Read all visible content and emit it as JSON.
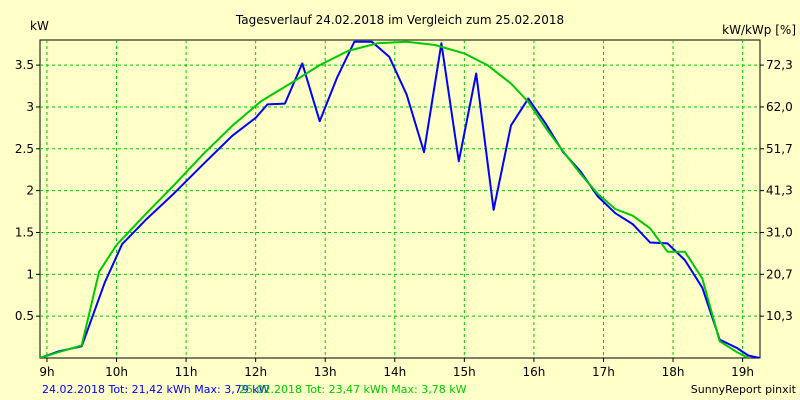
{
  "chart_data": {
    "type": "line",
    "title": "Tagesverlauf 24.02.2018 im Vergleich zum 25.02.2018",
    "ylabel_left": "kW",
    "ylabel_right": "kW/kWp [%]",
    "xlim": [
      8.9,
      19.25
    ],
    "ylim": [
      0,
      3.8
    ],
    "grid": true,
    "x_ticks": [
      {
        "x": 9,
        "label": "9h"
      },
      {
        "x": 10,
        "label": "10h"
      },
      {
        "x": 11,
        "label": "11h"
      },
      {
        "x": 12,
        "label": "12h"
      },
      {
        "x": 13,
        "label": "13h"
      },
      {
        "x": 14,
        "label": "14h"
      },
      {
        "x": 15,
        "label": "15h"
      },
      {
        "x": 16,
        "label": "16h"
      },
      {
        "x": 17,
        "label": "17h"
      },
      {
        "x": 18,
        "label": "18h"
      },
      {
        "x": 19,
        "label": "19h"
      }
    ],
    "y_ticks_left": [
      {
        "y": 0.5,
        "label": "0.5"
      },
      {
        "y": 1,
        "label": "1"
      },
      {
        "y": 1.5,
        "label": "1.5"
      },
      {
        "y": 2,
        "label": "2"
      },
      {
        "y": 2.5,
        "label": "2.5"
      },
      {
        "y": 3,
        "label": "3"
      },
      {
        "y": 3.5,
        "label": "3.5"
      }
    ],
    "y_ticks_right": [
      {
        "y": 0.5,
        "label": "10,3"
      },
      {
        "y": 1,
        "label": "20,7"
      },
      {
        "y": 1.5,
        "label": "31,0"
      },
      {
        "y": 2,
        "label": "41,3"
      },
      {
        "y": 2.5,
        "label": "51,7"
      },
      {
        "y": 3,
        "label": "62,0"
      },
      {
        "y": 3.5,
        "label": "72,3"
      }
    ],
    "series": [
      {
        "name": "24.02.2018",
        "color": "#0000ff",
        "points": [
          [
            8.9,
            0.0
          ],
          [
            9.17,
            0.08
          ],
          [
            9.5,
            0.14
          ],
          [
            9.83,
            0.9
          ],
          [
            10.08,
            1.36
          ],
          [
            10.42,
            1.65
          ],
          [
            10.83,
            1.97
          ],
          [
            11.25,
            2.32
          ],
          [
            11.67,
            2.66
          ],
          [
            12.0,
            2.87
          ],
          [
            12.17,
            3.03
          ],
          [
            12.42,
            3.04
          ],
          [
            12.67,
            3.52
          ],
          [
            12.92,
            2.83
          ],
          [
            13.17,
            3.35
          ],
          [
            13.42,
            3.78
          ],
          [
            13.67,
            3.78
          ],
          [
            13.92,
            3.6
          ],
          [
            14.17,
            3.15
          ],
          [
            14.42,
            2.46
          ],
          [
            14.67,
            3.76
          ],
          [
            14.92,
            2.35
          ],
          [
            15.17,
            3.4
          ],
          [
            15.42,
            1.77
          ],
          [
            15.67,
            2.78
          ],
          [
            15.92,
            3.1
          ],
          [
            16.17,
            2.8
          ],
          [
            16.42,
            2.46
          ],
          [
            16.67,
            2.23
          ],
          [
            16.92,
            1.93
          ],
          [
            17.17,
            1.73
          ],
          [
            17.42,
            1.6
          ],
          [
            17.67,
            1.38
          ],
          [
            17.92,
            1.37
          ],
          [
            18.17,
            1.17
          ],
          [
            18.42,
            0.84
          ],
          [
            18.67,
            0.22
          ],
          [
            18.92,
            0.12
          ],
          [
            19.08,
            0.03
          ],
          [
            19.25,
            0.0
          ]
        ]
      },
      {
        "name": "25.02.2018",
        "color": "#00c800",
        "points": [
          [
            8.9,
            0.0
          ],
          [
            9.17,
            0.07
          ],
          [
            9.5,
            0.15
          ],
          [
            9.75,
            1.03
          ],
          [
            10.0,
            1.35
          ],
          [
            10.42,
            1.72
          ],
          [
            10.83,
            2.07
          ],
          [
            11.25,
            2.44
          ],
          [
            11.67,
            2.78
          ],
          [
            12.08,
            3.07
          ],
          [
            12.5,
            3.28
          ],
          [
            12.92,
            3.5
          ],
          [
            13.33,
            3.67
          ],
          [
            13.75,
            3.76
          ],
          [
            14.17,
            3.78
          ],
          [
            14.58,
            3.74
          ],
          [
            15.0,
            3.64
          ],
          [
            15.33,
            3.5
          ],
          [
            15.67,
            3.28
          ],
          [
            15.92,
            3.06
          ],
          [
            16.17,
            2.75
          ],
          [
            16.42,
            2.47
          ],
          [
            16.67,
            2.2
          ],
          [
            16.92,
            1.96
          ],
          [
            17.17,
            1.78
          ],
          [
            17.42,
            1.7
          ],
          [
            17.67,
            1.55
          ],
          [
            17.92,
            1.27
          ],
          [
            18.17,
            1.27
          ],
          [
            18.42,
            0.95
          ],
          [
            18.67,
            0.2
          ],
          [
            18.92,
            0.07
          ],
          [
            19.08,
            0.0
          ]
        ]
      }
    ],
    "legend": [
      {
        "label": "24.02.2018 Tot: 21,42 kWh Max: 3,79 kW",
        "color": "#0000ff"
      },
      {
        "label": "25.02.2018 Tot: 23,47 kWh Max: 3,78 kW",
        "color": "#00c800"
      }
    ],
    "credit": "SunnyReport pinxit"
  },
  "colors": {
    "background": "#ffffc8",
    "plot_background": "#ffffc8",
    "grid": "#00c800",
    "axis": "#000000"
  }
}
